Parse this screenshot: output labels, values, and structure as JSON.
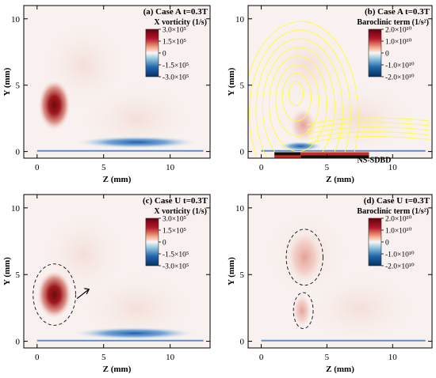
{
  "colors": {
    "positive": "#7f0a10",
    "negative": "#0b3f91",
    "neutral": "#f4f4f4",
    "streamlines": "#ffff33",
    "electrode_dark": "#111111",
    "electrode_red": "#d0281e"
  },
  "chart_data": [
    {
      "type": "heatmap",
      "title": "(a) Case A t=0.3T",
      "legend_title": "X vorticity (1/s)",
      "legend_ticks": [
        "3.0×10⁵",
        "1.5×10⁵",
        "0",
        "-1.5×10⁵",
        "-3.0×10⁵"
      ],
      "xlabel": "Z (mm)",
      "ylabel": "Y (mm)",
      "x_ticks": [
        "0",
        "5",
        "10"
      ],
      "y_ticks": [
        "0",
        "5",
        "10"
      ],
      "xlim": [
        -1,
        13
      ],
      "ylim": [
        -0.5,
        11
      ],
      "features": [
        {
          "sign": "positive",
          "z": 1.3,
          "y": 3.5,
          "rz": 1.2,
          "ry": 1.9
        },
        {
          "sign": "negative",
          "z": 7.5,
          "y": 0.7,
          "rz": 4.5,
          "ry": 0.45
        }
      ]
    },
    {
      "type": "heatmap",
      "title": "(b) Case A t=0.3T",
      "legend_title": "Baroclinic term (1/s²)",
      "legend_ticks": [
        "2.0×10¹⁰",
        "1.0×10¹⁰",
        "0",
        "-1.0×10¹⁰",
        "-2.0×10¹⁰"
      ],
      "xlabel": "Z (mm)",
      "ylabel": "Y (mm)",
      "x_ticks": [
        "0",
        "5",
        "10"
      ],
      "y_ticks": [
        "0",
        "5",
        "10"
      ],
      "xlim": [
        -1,
        13
      ],
      "ylim": [
        -0.5,
        11
      ],
      "annotation": "NS-SDBD",
      "streamlines": true,
      "features": [
        {
          "sign": "positive",
          "z": 3.2,
          "y": 2.0,
          "rz": 1.0,
          "ry": 1.3
        },
        {
          "sign": "negative",
          "z": 3.0,
          "y": 0.4,
          "rz": 1.6,
          "ry": 0.35
        }
      ]
    },
    {
      "type": "heatmap",
      "title": "(c) Case U t=0.3T",
      "legend_title": "X vorticity (1/s)",
      "legend_ticks": [
        "3.0×10⁵",
        "1.5×10⁵",
        "0",
        "-1.5×10⁵",
        "-3.0×10⁵"
      ],
      "xlabel": "Z (mm)",
      "ylabel": "Y (mm)",
      "x_ticks": [
        "0",
        "5",
        "10"
      ],
      "y_ticks": [
        "0",
        "5",
        "10"
      ],
      "xlim": [
        -1,
        13
      ],
      "ylim": [
        -0.5,
        11
      ],
      "features": [
        {
          "sign": "positive",
          "z": 1.3,
          "y": 3.5,
          "rz": 1.3,
          "ry": 1.8
        },
        {
          "sign": "negative",
          "z": 7.3,
          "y": 0.6,
          "rz": 4.5,
          "ry": 0.45
        }
      ]
    },
    {
      "type": "heatmap",
      "title": "(d) Case U t=0.3T",
      "legend_title": "Baroclinic term (1/s²)",
      "legend_ticks": [
        "2.0×10¹⁰",
        "1.0×10¹⁰",
        "0",
        "-1.0×10¹⁰",
        "-2.0×10¹⁰"
      ],
      "xlabel": "Z (mm)",
      "ylabel": "Y (mm)",
      "x_ticks": [
        "0",
        "5",
        "10"
      ],
      "y_ticks": [
        "0",
        "5",
        "10"
      ],
      "xlim": [
        -1,
        13
      ],
      "ylim": [
        -0.5,
        11
      ],
      "features": [
        {
          "sign": "positive",
          "z": 3.3,
          "y": 6.3,
          "rz": 1.3,
          "ry": 1.9
        },
        {
          "sign": "positive",
          "z": 3.1,
          "y": 2.3,
          "rz": 0.7,
          "ry": 1.2
        }
      ]
    }
  ]
}
